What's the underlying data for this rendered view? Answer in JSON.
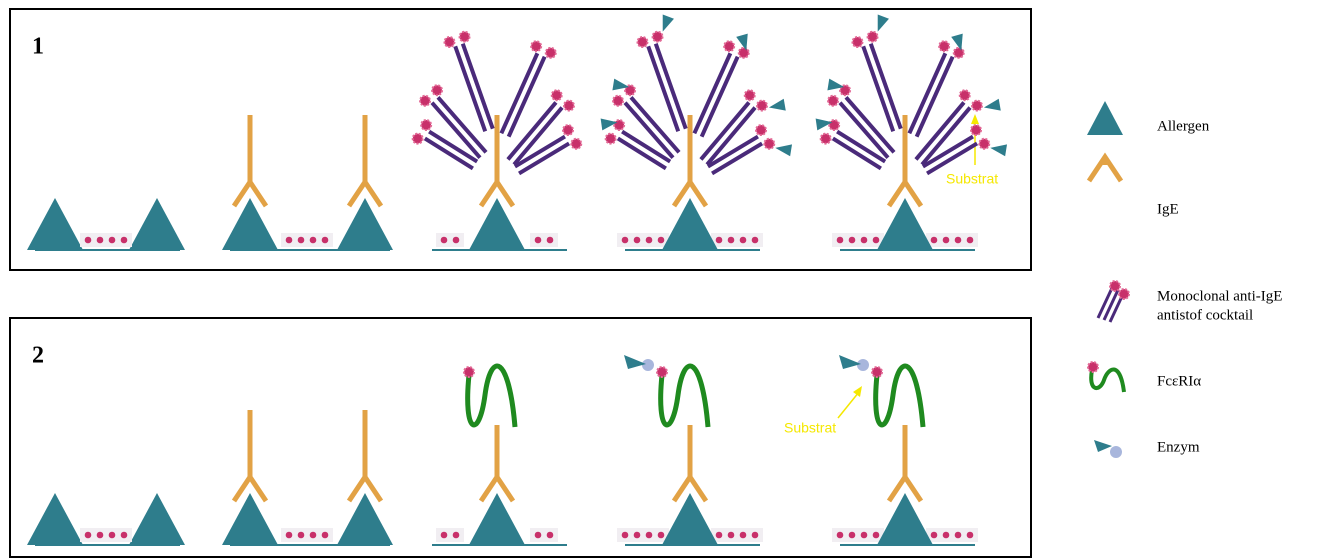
{
  "panels": [
    {
      "label": "1",
      "annotation": "Substrat"
    },
    {
      "label": "2",
      "annotation": "Substrat"
    }
  ],
  "legend": [
    {
      "label": "Allergen"
    },
    {
      "label": "IgE"
    },
    {
      "label": [
        "Monoclonal anti-IgE",
        "antistof cocktail"
      ]
    },
    {
      "label": "FcεRIα"
    },
    {
      "label": "Enzym"
    }
  ]
}
